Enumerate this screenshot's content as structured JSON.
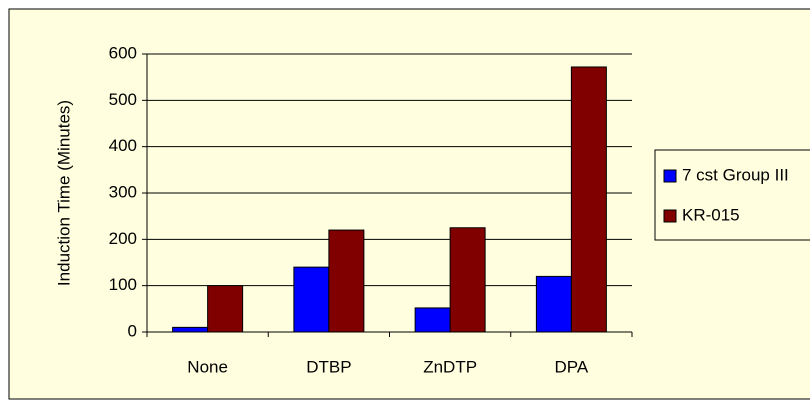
{
  "chart_data": {
    "type": "bar",
    "y_label": "Induction Time (Minutes)",
    "categories": [
      "None",
      "DTBP",
      "ZnDTP",
      "DPA"
    ],
    "series": [
      {
        "name": "7 cst Group III",
        "color": "#0000ff",
        "values": [
          10,
          140,
          52,
          120
        ]
      },
      {
        "name": "KR-015",
        "color": "#800000",
        "values": [
          100,
          220,
          225,
          572
        ]
      }
    ],
    "ylim": [
      0,
      600
    ],
    "yticks": [
      0,
      100,
      200,
      300,
      400,
      500,
      600
    ],
    "grid": true,
    "legend": "right"
  }
}
